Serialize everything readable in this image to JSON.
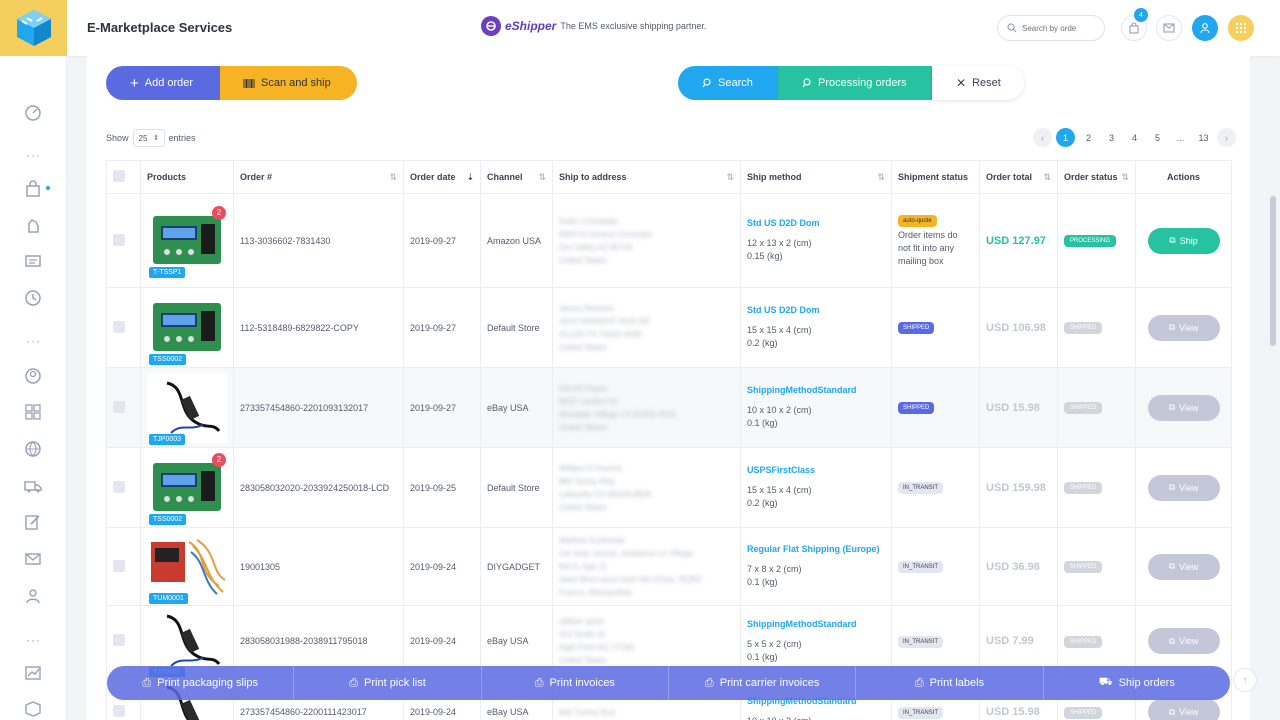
{
  "app": {
    "title": "E-Marketplace Services"
  },
  "partner": {
    "name": "eShipper",
    "tagline": "The EMS exclusive shipping partner."
  },
  "header": {
    "search_placeholder": "Search by orde",
    "cart_count": "4"
  },
  "toolbar": {
    "add_order": "Add order",
    "scan_ship": "Scan and ship",
    "search": "Search",
    "processing": "Processing orders",
    "reset": "Reset"
  },
  "entries": {
    "show": "Show",
    "value": "25",
    "label": "entries"
  },
  "pagination": {
    "pages": [
      "1",
      "2",
      "3",
      "4",
      "5",
      "...",
      "13"
    ],
    "current": "1"
  },
  "table": {
    "headers": [
      "Products",
      "Order #",
      "Order date",
      "Channel",
      "Ship to address",
      "Ship method",
      "Shipment status",
      "Order total",
      "Order status",
      "Actions"
    ],
    "rows": [
      {
        "sku": "T-TSSP1",
        "qty": "2",
        "order": "113-3036602-7831430",
        "date": "2019-09-27",
        "channel": "Amazon USA",
        "addr": [
          "Keith J Outwater",
          "8900 N Camino Coronado",
          "Oro Valley AZ 85704",
          "United States"
        ],
        "method": "Std US D2D Dom",
        "dims": "12 x 13 x 2 (cm)",
        "weight": "0.15 (kg)",
        "ship_status": "auto-quote",
        "ship_note": "Order items do not fit into any mailing box",
        "total": "USD 127.97",
        "order_status": "PROCESSING",
        "action": "Ship"
      },
      {
        "sku": "TSS0002",
        "qty": "",
        "order": "112-5318489-6829822-COPY",
        "date": "2019-09-27",
        "channel": "Default Store",
        "addr": [
          "James Beavers",
          "1623 HARVEST RUN DR",
          "ALLEN TX 75002-4589",
          "United States"
        ],
        "method": "Std US D2D Dom",
        "dims": "15 x 15 x 4 (cm)",
        "weight": "0.2 (kg)",
        "ship_status": "SHIPPED",
        "ship_note": "",
        "total": "USD 106.98",
        "order_status": "SHIPPED",
        "action": "View"
      },
      {
        "sku": "TJP0003",
        "qty": "",
        "order": "273357454860-2201093132017",
        "date": "2019-09-27",
        "channel": "eBay USA",
        "addr": [
          "Darrell Hayes",
          "6602 Landino Dr",
          "Westlake Village CA 91362-4520",
          "United States"
        ],
        "method": "ShippingMethodStandard",
        "dims": "10 x 10 x 2 (cm)",
        "weight": "0.1 (kg)",
        "ship_status": "SHIPPED",
        "ship_note": "",
        "total": "USD 15.98",
        "order_status": "SHIPPED",
        "action": "View"
      },
      {
        "sku": "TSS0002",
        "qty": "2",
        "order": "283058032020-2033924250018-LCD",
        "date": "2019-09-25",
        "channel": "Default Store",
        "addr": [
          "William D Knoche",
          "880 Sunny Way",
          "Lafayette CO 80026-8829",
          "United States"
        ],
        "method": "USPSFirstClass",
        "dims": "15 x 15 x 4 (cm)",
        "weight": "0.2 (kg)",
        "ship_status": "IN_TRANSIT",
        "ship_note": "",
        "total": "USD 159.98",
        "order_status": "SHIPPED",
        "action": "View"
      },
      {
        "sku": "TUM0001",
        "qty": "",
        "order": "19001305",
        "date": "2019-09-24",
        "channel": "DIYGADGET",
        "addr": [
          "Mathias Kozlowski",
          "rue Jean Jaures, residence Le Village",
          "Bat A, App 11",
          "Saint-Brice-sous-foret Val-d'Oise, 95350",
          "France, Metropolitan"
        ],
        "method": "Regular Flat Shipping (Europe)",
        "dims": "7 x 8 x 2 (cm)",
        "weight": "0.1 (kg)",
        "ship_status": "IN_TRANSIT",
        "ship_note": "",
        "total": "USD 36.98",
        "order_status": "SHIPPED",
        "action": "View"
      },
      {
        "sku": "TJT0001",
        "qty": "",
        "order": "283058031988-2038911795018",
        "date": "2019-09-24",
        "channel": "eBay USA",
        "addr": [
          "william quick",
          "412 Smith St",
          "High Point NC 27260",
          "United States"
        ],
        "method": "ShippingMethodStandard",
        "dims": "5 x 5 x 2 (cm)",
        "weight": "0.1 (kg)",
        "ship_status": "IN_TRANSIT",
        "ship_note": "",
        "total": "USD 7.99",
        "order_status": "SHIPPED",
        "action": "View"
      },
      {
        "sku": "",
        "qty": "",
        "order": "273357454860-2200111423017",
        "date": "2019-09-24",
        "channel": "eBay USA",
        "addr": [
          "",
          "946 Turkey Run",
          "",
          ""
        ],
        "method": "ShippingMethodStandard",
        "dims": "10 x 10 x 2 (cm)",
        "weight": "",
        "ship_status": "IN_TRANSIT",
        "ship_note": "",
        "total": "USD 15.98",
        "order_status": "SHIPPED",
        "action": "View"
      }
    ]
  },
  "bulk": [
    "Print packaging slips",
    "Print pick list",
    "Print invoices",
    "Print carrier invoices",
    "Print labels",
    "Ship orders"
  ],
  "colors": {
    "primary": "#5a6ae0",
    "accent": "#20a7f0",
    "success": "#27c29f",
    "warning": "#f6b323",
    "danger": "#ee4b5e"
  }
}
